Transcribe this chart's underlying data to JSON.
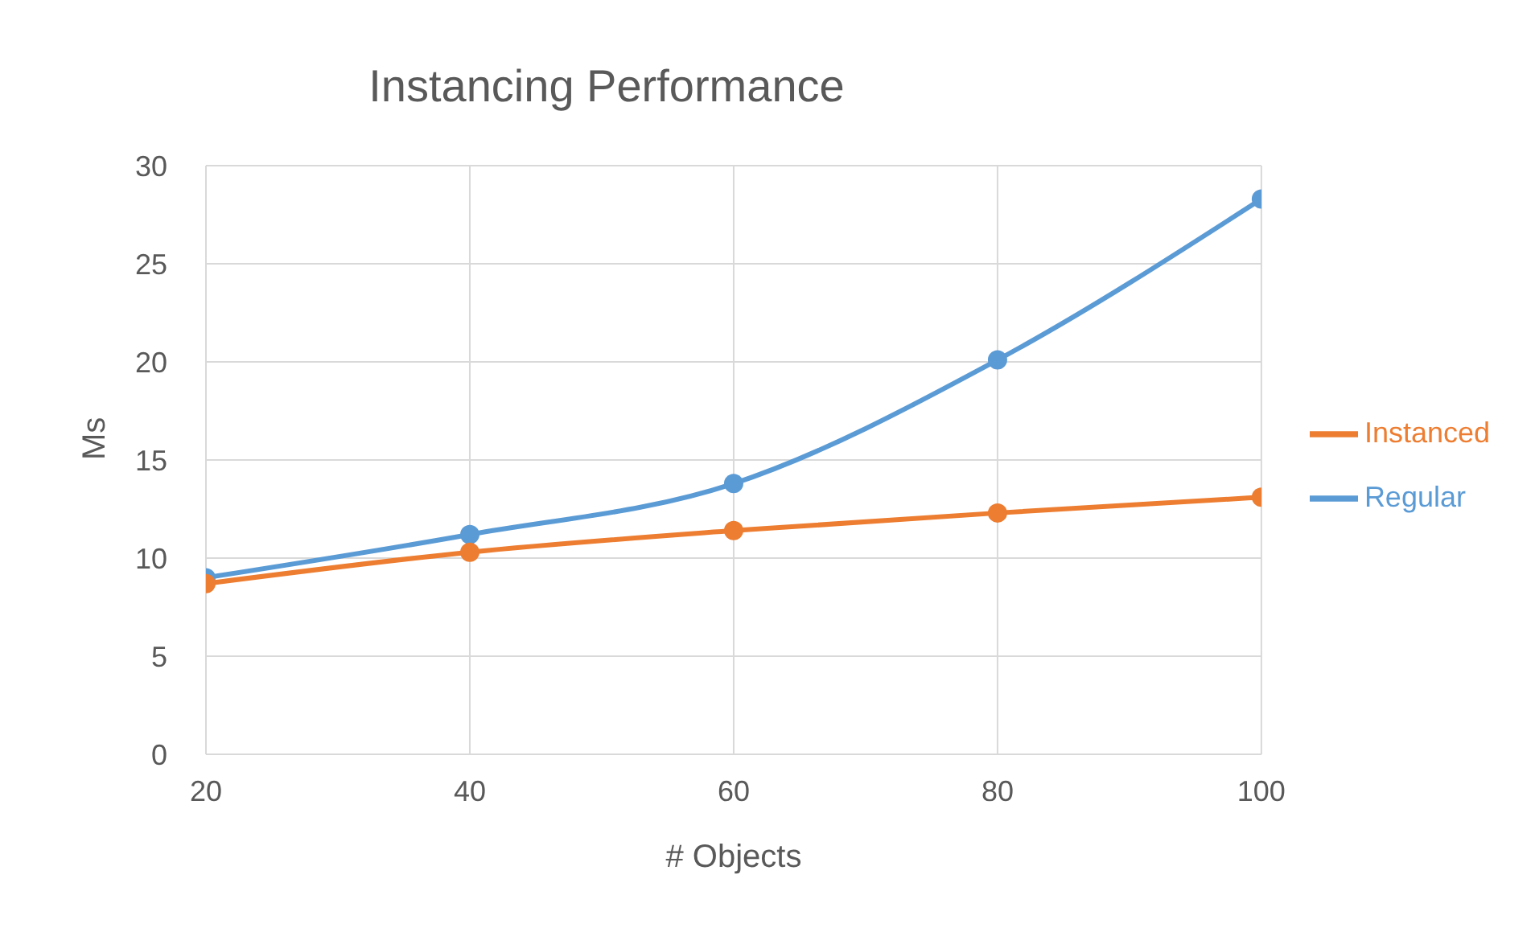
{
  "chart_data": {
    "type": "line",
    "title": "Instancing Performance",
    "xlabel": "# Objects",
    "ylabel": "Ms",
    "x": [
      20,
      40,
      60,
      80,
      100
    ],
    "series": [
      {
        "name": "Regular",
        "color": "#5b9bd5",
        "values": [
          9.0,
          11.2,
          13.8,
          20.1,
          28.3
        ]
      },
      {
        "name": "Instanced",
        "color": "#ed7d31",
        "values": [
          8.7,
          10.3,
          11.4,
          12.3,
          13.1
        ]
      }
    ],
    "xlim": [
      20,
      100
    ],
    "xticks": [
      20,
      40,
      60,
      80,
      100
    ],
    "ylim": [
      0,
      30
    ],
    "yticks": [
      0,
      5,
      10,
      15,
      20,
      25,
      30
    ],
    "grid": true,
    "legend": "right",
    "marker": "circle",
    "line_style": "solid"
  }
}
